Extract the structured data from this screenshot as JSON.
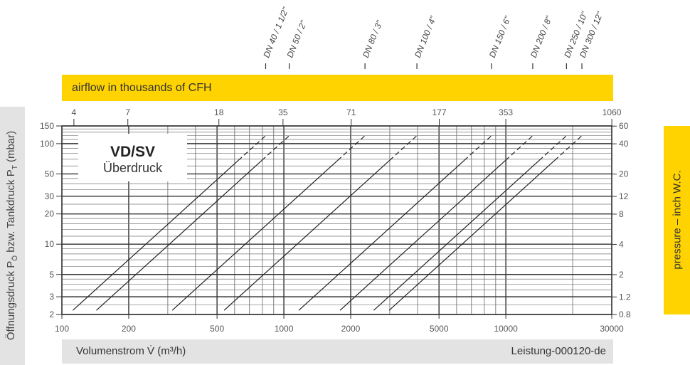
{
  "top_banner": "airflow in thousands of CFH",
  "inner_title": {
    "line1": "VD/SV",
    "line2": "Überdruck"
  },
  "left_axis_title": {
    "prefix": "Öffnungsdruck P",
    "sub1": "Ö",
    "middle": " bzw. Tankdruck P",
    "sub2": "T",
    "suffix": " (mbar)"
  },
  "right_axis_title": "pressure – inch W.C.",
  "bottom_bar": {
    "xlabel": "Volumenstrom V̇ (m³/h)",
    "doc_id": "Leistung-000120-de"
  },
  "colors": {
    "yellow": "#fed300",
    "gray": "#e3e3e3",
    "line": "#222222"
  },
  "chart_data": {
    "type": "line",
    "x_scale": "log",
    "y_scale": "log",
    "xlim": [
      100,
      30000
    ],
    "ylim": [
      2,
      150
    ],
    "xlabel": "Volumenstrom V̇ (m³/h)",
    "ylabel": "Öffnungsdruck PÖ bzw. Tankdruck PT (mbar)",
    "grid": true,
    "x_ticks": [
      "100",
      "200",
      "500",
      "1000",
      "2000",
      "5000",
      "10000",
      "30000"
    ],
    "y_ticks": [
      "2",
      "3",
      "5",
      "10",
      "20",
      "30",
      "50",
      "100",
      "150"
    ],
    "top_axis": {
      "label": "airflow in thousands of CFH",
      "ticks": [
        "4",
        "7",
        "18",
        "35",
        "71",
        "177",
        "353",
        "1060"
      ]
    },
    "right_axis": {
      "label": "pressure – inch W.C.",
      "ticks": [
        "0.8",
        "1.2",
        "2",
        "4",
        "8",
        "12",
        "20",
        "40",
        "60"
      ]
    },
    "series": [
      {
        "name": "DN 40 / 1 1/2\"",
        "points": [
          [
            112,
            2.2
          ],
          [
            828,
            120
          ]
        ],
        "dashed_above_mbar": 68
      },
      {
        "name": "DN 50 / 2\"",
        "points": [
          [
            143,
            2.2
          ],
          [
            1057,
            120
          ]
        ],
        "dashed_above_mbar": 68
      },
      {
        "name": "DN 80 / 3\"",
        "points": [
          [
            314,
            2.2
          ],
          [
            2320,
            120
          ]
        ],
        "dashed_above_mbar": 68
      },
      {
        "name": "DN 100 / 4\"",
        "points": [
          [
            538,
            2.2
          ],
          [
            3975,
            120
          ]
        ],
        "dashed_above_mbar": 68
      },
      {
        "name": "DN 150 / 6\"",
        "points": [
          [
            1167,
            2.2
          ],
          [
            8620,
            120
          ]
        ],
        "dashed_above_mbar": 68
      },
      {
        "name": "DN 200 / 8\"",
        "points": [
          [
            1790,
            2.2
          ],
          [
            13220,
            120
          ]
        ],
        "dashed_above_mbar": 68
      },
      {
        "name": "DN 250 / 10\"",
        "points": [
          [
            2540,
            2.2
          ],
          [
            18760,
            120
          ]
        ],
        "dashed_above_mbar": 68
      },
      {
        "name": "DN 300 / 12\"",
        "points": [
          [
            2980,
            2.2
          ],
          [
            22010,
            120
          ]
        ],
        "dashed_above_mbar": 68
      }
    ]
  }
}
